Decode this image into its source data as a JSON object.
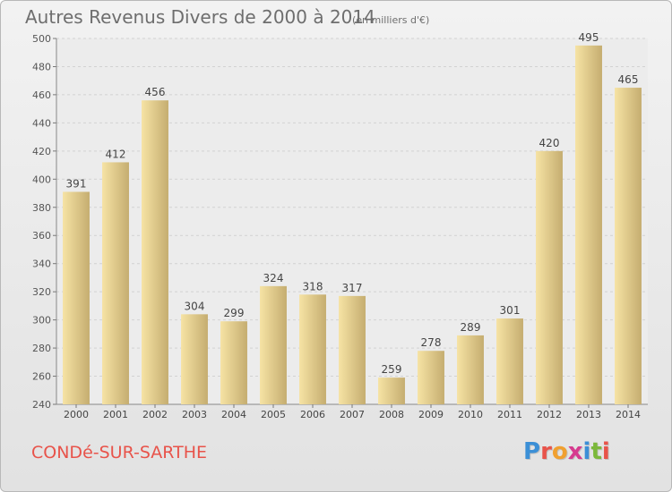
{
  "header": {
    "title": "Autres Revenus Divers de 2000 à 2014",
    "subtitle": "(en milliers d'€)"
  },
  "footer": {
    "city": "CONDé-SUR-SARTHE",
    "brand_letters": [
      "P",
      "r",
      "o",
      "x",
      "i",
      "t",
      "i"
    ]
  },
  "colors": {
    "bar_light": "#f6e3a4",
    "bar_dark": "#c5ad70",
    "city": "#e8534a",
    "brand": [
      "#3b8fd6",
      "#e8534a",
      "#f0a030",
      "#d63b8f",
      "#3b8fd6",
      "#7cb83b",
      "#e8534a"
    ]
  },
  "chart_data": {
    "type": "bar",
    "categories": [
      "2000",
      "2001",
      "2002",
      "2003",
      "2004",
      "2005",
      "2006",
      "2007",
      "2008",
      "2009",
      "2010",
      "2011",
      "2012",
      "2013",
      "2014"
    ],
    "values": [
      391,
      412,
      456,
      304,
      299,
      324,
      318,
      317,
      259,
      278,
      289,
      301,
      420,
      495,
      465
    ],
    "title": "Autres Revenus Divers de 2000 à 2014",
    "ylim": [
      240,
      500
    ],
    "yticks": [
      240,
      260,
      280,
      300,
      320,
      340,
      360,
      380,
      400,
      420,
      440,
      460,
      480,
      500
    ],
    "grid": true
  }
}
